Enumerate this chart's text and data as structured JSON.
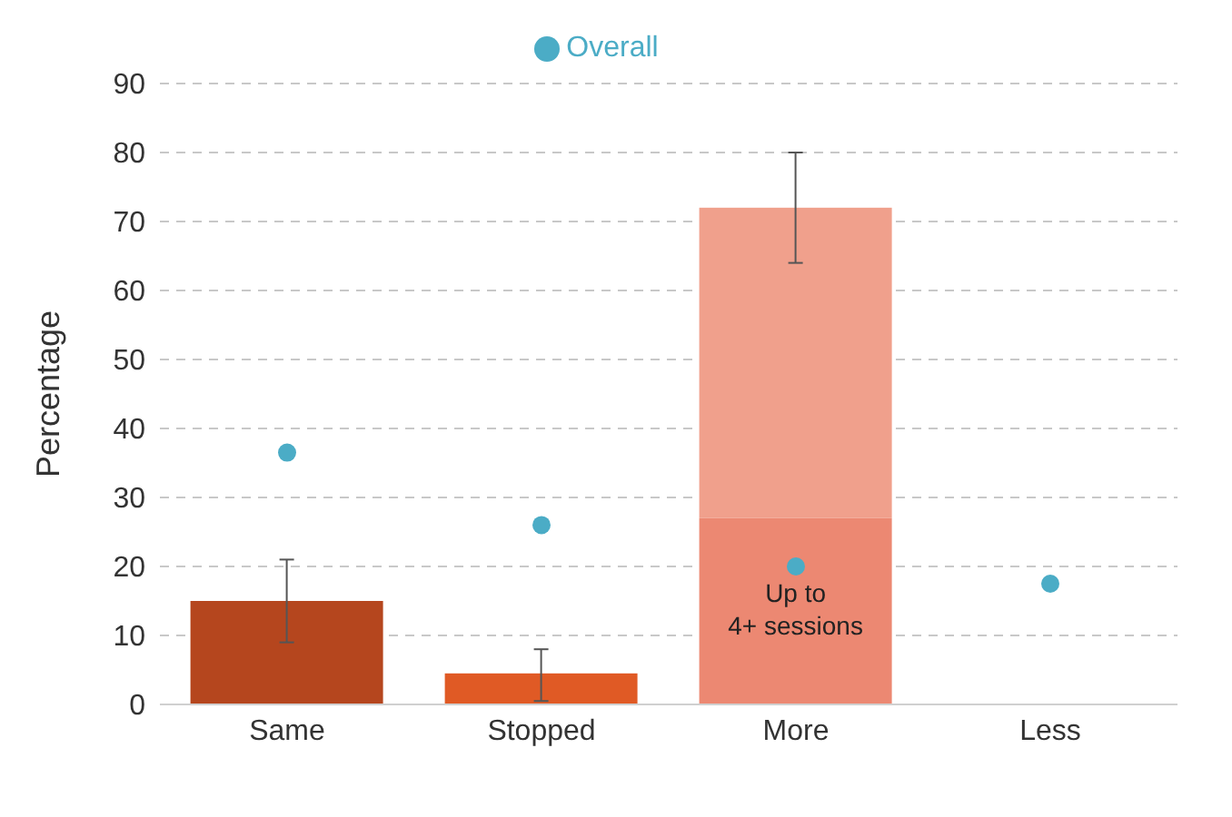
{
  "chart_data": {
    "type": "bar",
    "ylabel": "Percentage",
    "categories": [
      "Same",
      "Stopped",
      "More",
      "Less"
    ],
    "stacked": true,
    "series": [
      {
        "colors": [
          "#b5461e",
          "#e05a25",
          "#ec8872",
          null
        ],
        "values": [
          15,
          4.5,
          27,
          null
        ],
        "errors": [
          [
            9,
            21
          ],
          [
            0.5,
            8
          ],
          null,
          null
        ]
      },
      {
        "colors": [
          null,
          null,
          "#f0a08c",
          null
        ],
        "values": [
          null,
          null,
          45,
          null
        ],
        "errors": [
          null,
          null,
          [
            64,
            80
          ],
          null
        ]
      },
      {
        "type": "scatter",
        "name": "Overall",
        "color": "#4bacc6",
        "x": [
          "Same",
          "Stopped",
          "More",
          "Less"
        ],
        "values": [
          36.5,
          26,
          20,
          17.5
        ]
      }
    ],
    "annotations": [
      "Up to 4+ sessions"
    ],
    "ylim": [
      0,
      90
    ],
    "yticks": [
      0,
      10,
      20,
      30,
      40,
      50,
      60,
      70,
      80,
      90
    ],
    "grid": "y",
    "legend": "top",
    "marker": "circle"
  }
}
